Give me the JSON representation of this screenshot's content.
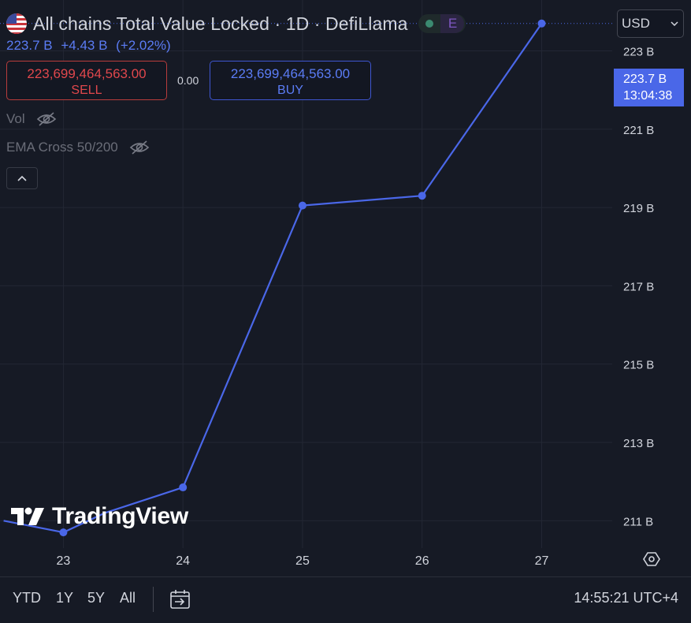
{
  "header": {
    "title": "All chains Total Value Locked · 1D · DefiLlama",
    "status_letter": "E",
    "currency": "USD"
  },
  "price_info": {
    "last": "223.7 B",
    "change": "+4.43 B",
    "change_pct": "(+2.02%)"
  },
  "trade": {
    "sell_price": "223,699,464,563.00",
    "sell_label": "SELL",
    "buy_price": "223,699,464,563.00",
    "buy_label": "BUY",
    "spread": "0.00"
  },
  "indicators": [
    {
      "label": "Vol"
    },
    {
      "label": "EMA Cross 50/200"
    }
  ],
  "price_tag": {
    "value": "223.7 B",
    "time": "13:04:38"
  },
  "branding": {
    "logo_text": "TradingView"
  },
  "bottom_bar": {
    "ranges": [
      "YTD",
      "1Y",
      "5Y",
      "All"
    ],
    "clock": "14:55:21 UTC+4"
  },
  "colors": {
    "background": "#161a25",
    "line": "#4a67e8",
    "grid": "#232734",
    "sell": "#e0474c",
    "buy": "#5b7cf5"
  },
  "chart_data": {
    "type": "line",
    "title": "All chains Total Value Locked · 1D · DefiLlama",
    "xlabel": "",
    "ylabel": "",
    "x": [
      22.5,
      23,
      23.35,
      24,
      25,
      26,
      27
    ],
    "y": [
      211.0,
      210.7,
      211.2,
      211.85,
      219.05,
      219.3,
      223.7
    ],
    "markers": [
      23,
      24,
      25,
      26,
      27
    ],
    "x_ticks": [
      23,
      24,
      25,
      26,
      27
    ],
    "x_tick_labels": [
      "23",
      "24",
      "25",
      "26",
      "27"
    ],
    "y_ticks": [
      211,
      213,
      215,
      217,
      219,
      221,
      223
    ],
    "y_tick_labels": [
      "211 B",
      "213 B",
      "215 B",
      "217 B",
      "219 B",
      "221 B",
      "223 B"
    ],
    "xlim": [
      22.47,
      27.59
    ],
    "ylim": [
      210.3,
      224.3
    ],
    "last_value": 223.7,
    "grid": true,
    "legend": "none"
  }
}
